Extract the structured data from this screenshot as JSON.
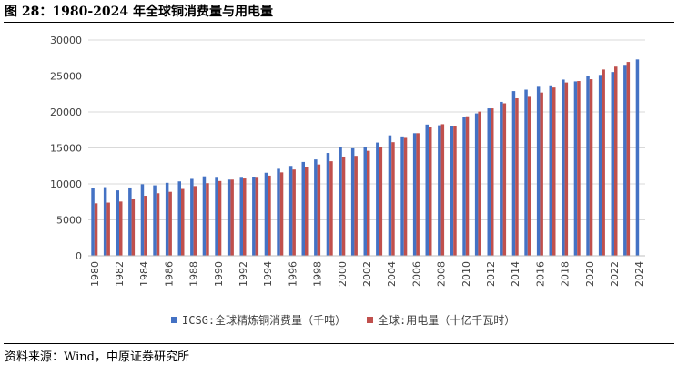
{
  "figure": {
    "title": "图 28：1980-2024 年全球铜消费量与用电量",
    "source": "资料来源：Wind，中原证券研究所"
  },
  "colors": {
    "series1": "#4472C4",
    "series2": "#C0504D",
    "gridline": "#D9D9D9",
    "axis": "#BFBFBF"
  },
  "chart_data": {
    "type": "bar",
    "title": "1980-2024 年全球铜消费量与用电量",
    "xlabel": "",
    "ylabel": "",
    "ylim": [
      0,
      30000
    ],
    "yticks": [
      0,
      5000,
      10000,
      15000,
      20000,
      25000,
      30000
    ],
    "grid": true,
    "legend_position": "bottom",
    "categories": [
      1980,
      1981,
      1982,
      1983,
      1984,
      1985,
      1986,
      1987,
      1988,
      1989,
      1990,
      1991,
      1992,
      1993,
      1994,
      1995,
      1996,
      1997,
      1998,
      1999,
      2000,
      2001,
      2002,
      2003,
      2004,
      2005,
      2006,
      2007,
      2008,
      2009,
      2010,
      2011,
      2012,
      2013,
      2014,
      2015,
      2016,
      2017,
      2018,
      2019,
      2020,
      2021,
      2022,
      2023,
      2024
    ],
    "series": [
      {
        "name": "ICSG:全球精炼铜消费量（千吨）",
        "values": [
          9400,
          9550,
          9100,
          9500,
          9950,
          9800,
          10150,
          10350,
          10700,
          11050,
          10850,
          10600,
          10850,
          11000,
          11550,
          12100,
          12500,
          13050,
          13400,
          14300,
          15100,
          14950,
          15150,
          15750,
          16750,
          16600,
          17050,
          18250,
          18150,
          18100,
          19350,
          19800,
          20500,
          21400,
          22900,
          23100,
          23500,
          23700,
          24500,
          24250,
          24950,
          25150,
          25550,
          26550,
          27300
        ]
      },
      {
        "name": "全球:用电量（十亿千瓦时）",
        "values": [
          7300,
          7400,
          7550,
          7850,
          8350,
          8700,
          8900,
          9300,
          9700,
          10100,
          10400,
          10600,
          10750,
          10850,
          11150,
          11600,
          12000,
          12300,
          12700,
          13150,
          13800,
          13900,
          14600,
          15100,
          15800,
          16400,
          17050,
          17900,
          18300,
          18100,
          19400,
          20050,
          20500,
          21200,
          21900,
          22100,
          22700,
          23400,
          24100,
          24300,
          24550,
          25900,
          26300,
          26950,
          null
        ]
      }
    ]
  }
}
